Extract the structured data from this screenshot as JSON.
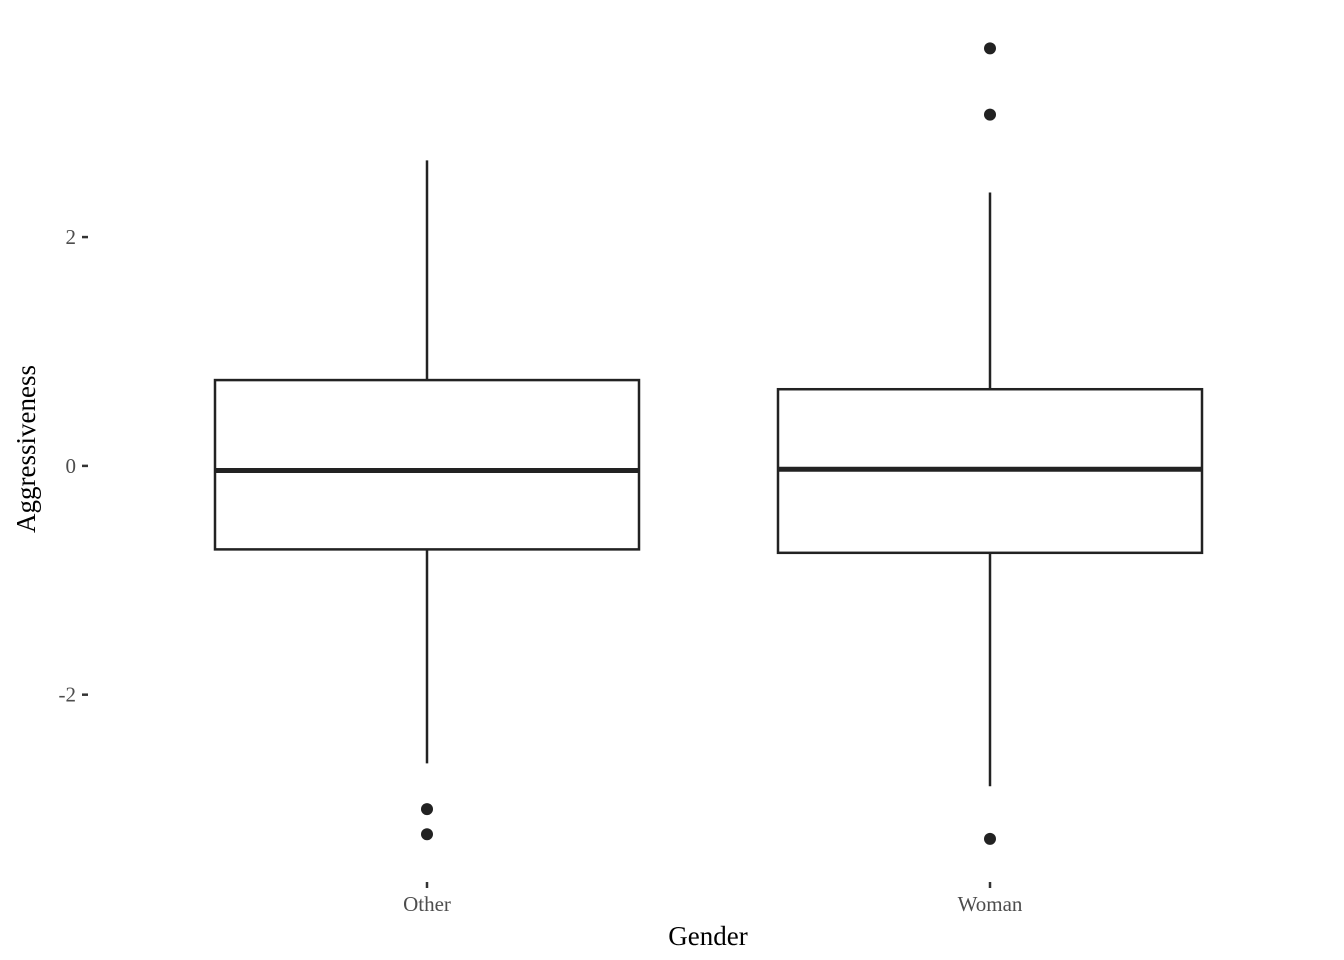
{
  "chart_data": {
    "type": "box",
    "title": "",
    "xlabel": "Gender",
    "ylabel": "Aggressiveness",
    "categories": [
      "Other",
      "Woman"
    ],
    "boxes": [
      {
        "category": "Other",
        "whisker_low": -2.6,
        "q1": -0.73,
        "median": -0.04,
        "q3": 0.75,
        "whisker_high": 2.67,
        "outliers": [
          -3.0,
          -3.22
        ]
      },
      {
        "category": "Woman",
        "whisker_low": -2.8,
        "q1": -0.76,
        "median": -0.03,
        "q3": 0.67,
        "whisker_high": 2.39,
        "outliers": [
          3.65,
          3.07,
          -3.26
        ]
      }
    ],
    "yticks": [
      -2,
      0,
      2
    ],
    "ytick_labels": [
      "-2",
      "0",
      "2"
    ],
    "ylim": [
      -3.55,
      3.95
    ],
    "grid": false,
    "legend": "none",
    "colors": {
      "line": "#222222",
      "background": "#ffffff",
      "tick_text": "#4d4d4d"
    }
  }
}
